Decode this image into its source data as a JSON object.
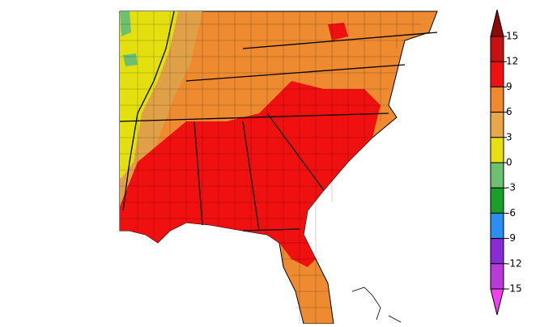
{
  "colorbar": {
    "ticks": [
      15,
      12,
      9,
      6,
      3,
      0,
      -3,
      -6,
      -9,
      -12,
      -15
    ],
    "colors": [
      "#8b0a0a",
      "#c81010",
      "#f01010",
      "#f0882d",
      "#e8a84a",
      "#e6e010",
      "#6cc070",
      "#18a028",
      "#2a8ff0",
      "#8a2bd8",
      "#b83ad8",
      "#f040f0"
    ]
  }
}
